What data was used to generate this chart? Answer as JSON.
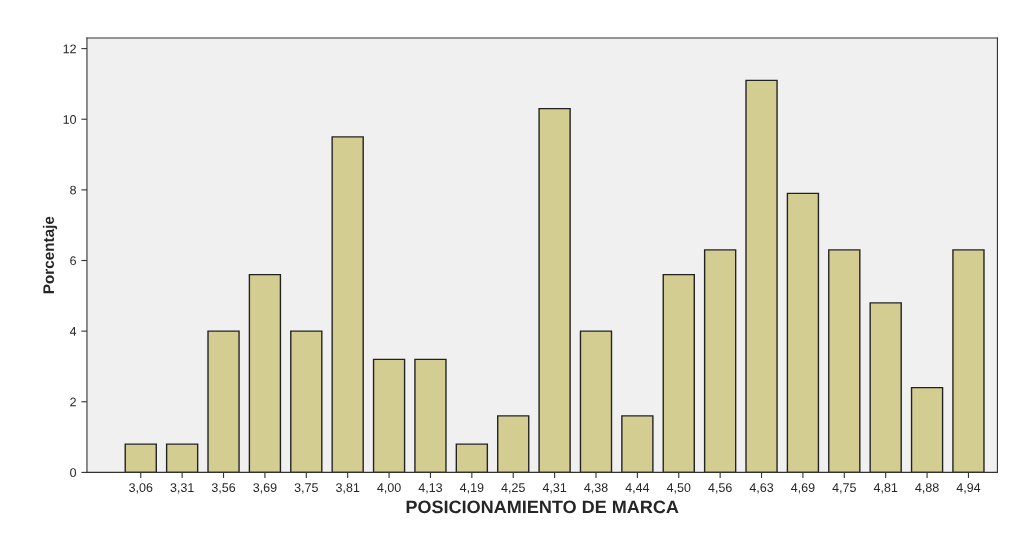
{
  "chart_data": {
    "type": "bar",
    "xlabel": "POSICIONAMIENTO DE MARCA",
    "ylabel": "Porcentaje",
    "categories": [
      "3,06",
      "3,31",
      "3,56",
      "3,69",
      "3,75",
      "3,81",
      "4,00",
      "4,13",
      "4,19",
      "4,25",
      "4,31",
      "4,38",
      "4,44",
      "4,50",
      "4,56",
      "4,63",
      "4,69",
      "4,75",
      "4,81",
      "4,88",
      "4,94"
    ],
    "values": [
      0.8,
      0.8,
      4.0,
      5.6,
      4.0,
      9.5,
      3.2,
      3.2,
      0.8,
      1.6,
      10.3,
      4.0,
      1.6,
      5.6,
      6.3,
      11.1,
      7.9,
      6.3,
      4.8,
      2.4,
      6.3
    ],
    "color": "#d3cd92",
    "ylim": [
      0,
      12.3
    ],
    "yticks": [
      0,
      2,
      4,
      6,
      8,
      10,
      12
    ],
    "grid": false
  }
}
